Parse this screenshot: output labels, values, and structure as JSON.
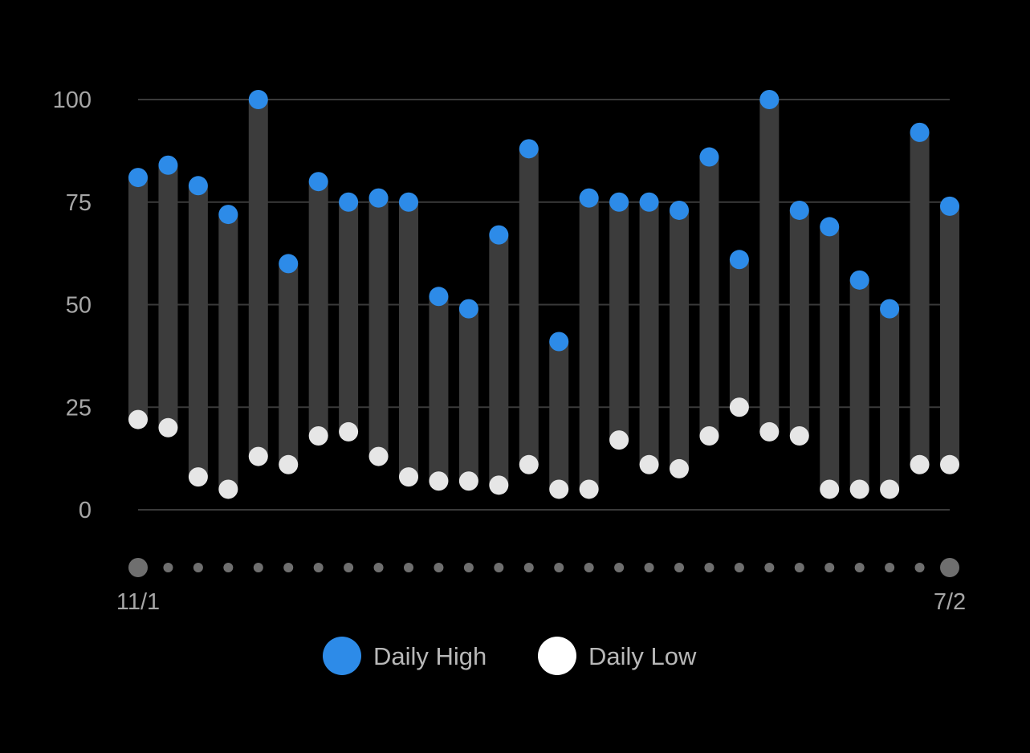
{
  "chart_data": {
    "type": "range-bar",
    "title": "",
    "xlabel": "",
    "ylabel": "",
    "ylim": [
      0,
      100
    ],
    "y_ticks": [
      "0",
      "25",
      "50",
      "75",
      "100"
    ],
    "x_tick_labels": {
      "first": "11/1",
      "last": "7/2"
    },
    "grid": true,
    "legend_position": "bottom",
    "series": [
      {
        "name": "Daily High",
        "color": "#2d8be8",
        "values": [
          81,
          84,
          79,
          72,
          100,
          60,
          80,
          75,
          76,
          75,
          52,
          49,
          67,
          88,
          41,
          76,
          75,
          75,
          73,
          86,
          61,
          100,
          73,
          69,
          56,
          49,
          92,
          74
        ]
      },
      {
        "name": "Daily Low",
        "color": "#e6e6e6",
        "values": [
          22,
          20,
          8,
          5,
          13,
          11,
          18,
          19,
          13,
          8,
          7,
          7,
          6,
          11,
          5,
          5,
          17,
          11,
          10,
          18,
          25,
          19,
          18,
          5,
          5,
          5,
          11,
          11
        ]
      }
    ],
    "bar_color": "#3c3c3c",
    "gridline_color": "#3a3a3a",
    "indicator_dot_color": "#6f6f6f"
  }
}
